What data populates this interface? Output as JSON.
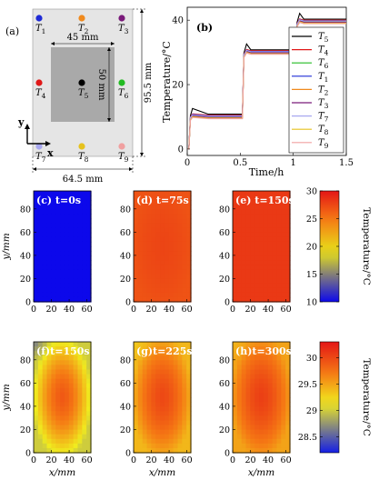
{
  "panel_a": {
    "label": "(a)",
    "sensors": [
      {
        "base": "T",
        "sub": "1",
        "color": "#1f2bd6"
      },
      {
        "base": "T",
        "sub": "2",
        "color": "#f08a1e"
      },
      {
        "base": "T",
        "sub": "3",
        "color": "#7a1a7a"
      },
      {
        "base": "T",
        "sub": "4",
        "color": "#e01818"
      },
      {
        "base": "T",
        "sub": "5",
        "color": "#000000"
      },
      {
        "base": "T",
        "sub": "6",
        "color": "#22bb22"
      },
      {
        "base": "T",
        "sub": "7",
        "color": "#a8a8f0"
      },
      {
        "base": "T",
        "sub": "8",
        "color": "#e6c21e"
      },
      {
        "base": "T",
        "sub": "9",
        "color": "#f0a0a0"
      }
    ],
    "dim_inner_width": "45 mm",
    "dim_inner_height": "50 mm",
    "dim_outer_height": "95.5 mm",
    "dim_outer_width": "64.5 mm",
    "axis_x": "x",
    "axis_y": "y"
  },
  "chart_data": [
    {
      "type": "line",
      "panel": "(b)",
      "xlabel": "Time/h",
      "ylabel": "Temperature/°C",
      "xlim": [
        0,
        1.5
      ],
      "ylim": [
        -2,
        44
      ],
      "xticks": [
        0,
        0.5,
        1,
        1.5
      ],
      "yticks": [
        0,
        20,
        40
      ],
      "xtick_labels": [
        "0",
        "0.5",
        "1",
        "1.5"
      ],
      "ytick_labels": [
        "0",
        "20",
        "40"
      ],
      "legend_position": "right",
      "legend": [
        {
          "base": "T",
          "sub": "5",
          "color": "#000000"
        },
        {
          "base": "T",
          "sub": "4",
          "color": "#e01818"
        },
        {
          "base": "T",
          "sub": "6",
          "color": "#22bb22"
        },
        {
          "base": "T",
          "sub": "1",
          "color": "#1f2bd6"
        },
        {
          "base": "T",
          "sub": "2",
          "color": "#f08a1e"
        },
        {
          "base": "T",
          "sub": "3",
          "color": "#7a1a7a"
        },
        {
          "base": "T",
          "sub": "7",
          "color": "#a8a8f0"
        },
        {
          "base": "T",
          "sub": "8",
          "color": "#e6c21e"
        },
        {
          "base": "T",
          "sub": "9",
          "color": "#f0a0a0"
        }
      ],
      "series_values": {
        "x": [
          0,
          0.015,
          0.03,
          0.05,
          0.2,
          0.5,
          0.52,
          0.535,
          0.56,
          0.6,
          0.8,
          1.0,
          1.02,
          1.035,
          1.06,
          1.1,
          1.5
        ],
        "base": [
          0,
          0,
          9.5,
          10,
          10,
          10,
          10,
          29,
          30,
          30,
          30,
          30,
          30,
          38.5,
          39.5,
          39.5,
          39.5
        ],
        "offsets": [
          0.8,
          0.5,
          0.0,
          0.3,
          -0.3,
          -0.1,
          0.2,
          -0.4,
          -0.6
        ]
      }
    },
    {
      "type": "heatmap",
      "panels": [
        "(c) t=0s",
        "(d) t=75s",
        "(e) t=150s"
      ],
      "xlabel": "",
      "ylabel": "y/mm",
      "xlim": [
        0,
        64.5
      ],
      "ylim": [
        0,
        95.5
      ],
      "xticks": [
        0,
        20,
        40,
        60
      ],
      "yticks": [
        0,
        20,
        40,
        60,
        80
      ],
      "colorbar": {
        "min": 10,
        "max": 30,
        "ticks": [
          10,
          15,
          20,
          25,
          30
        ],
        "label": "Temperature/°C"
      },
      "panel_temps": [
        {
          "center": 10,
          "edge": 10
        },
        {
          "center": 27.6,
          "edge": 26.9
        },
        {
          "center": 28.2,
          "edge": 28.2
        }
      ]
    },
    {
      "type": "heatmap",
      "panels": [
        "(f)t=150s",
        "(g)t=225s",
        "(h)t=300s"
      ],
      "xlabel": "x/mm",
      "ylabel": "y/mm",
      "xlim": [
        0,
        64.5
      ],
      "ylim": [
        0,
        95.5
      ],
      "xticks": [
        0,
        20,
        40,
        60
      ],
      "yticks": [
        0,
        20,
        40,
        60,
        80
      ],
      "colorbar": {
        "min": 28.2,
        "max": 30.3,
        "ticks": [
          28.5,
          29,
          29.5,
          30
        ],
        "label": "Temperature/°C"
      },
      "panel_temps": [
        {
          "center": 29.9,
          "edge": 29.0,
          "corner": 28.6
        },
        {
          "center": 30.0,
          "edge": 29.4,
          "corner": 29.3
        },
        {
          "center": 30.05,
          "edge": 29.5,
          "corner": 29.4
        }
      ]
    }
  ]
}
